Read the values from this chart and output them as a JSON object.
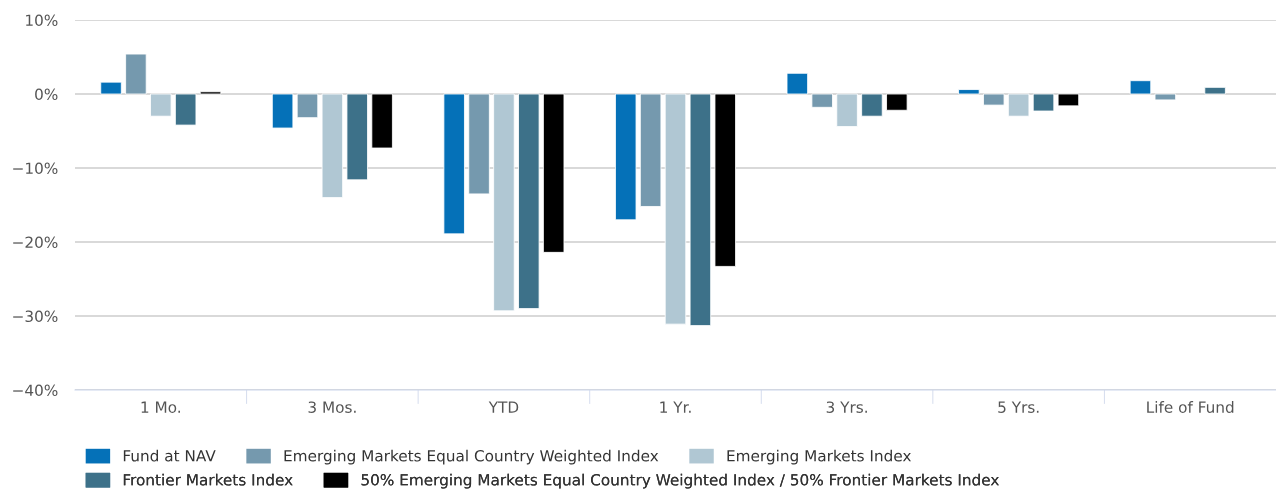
{
  "chart_data": {
    "type": "bar",
    "categories": [
      "1 Mo.",
      "3 Mos.",
      "YTD",
      "1 Yr.",
      "3 Yrs.",
      "5 Yrs.",
      "Life of Fund"
    ],
    "series": [
      {
        "name": "Fund at NAV",
        "color": "#0571b8",
        "values": [
          1.6,
          -4.6,
          -18.9,
          -17.0,
          2.8,
          0.6,
          1.8
        ]
      },
      {
        "name": "Emerging Markets Equal Country Weighted Index",
        "color": "#7599ae",
        "values": [
          5.4,
          -3.2,
          -13.5,
          -15.2,
          -1.8,
          -1.5,
          -0.8
        ]
      },
      {
        "name": "Emerging Markets Index",
        "color": "#b0c7d3",
        "values": [
          -3.0,
          -14.0,
          -29.3,
          -31.1,
          -4.4,
          -3.0,
          null
        ]
      },
      {
        "name": "Frontier Markets Index",
        "color": "#3d7189",
        "values": [
          -4.2,
          -11.6,
          -29.0,
          -31.3,
          -3.0,
          -2.3,
          0.9
        ]
      },
      {
        "name": "50% Emerging Markets Equal Country Weighted Index / 50% Frontier Markets Index",
        "color": "#000000",
        "values": [
          0.3,
          -7.3,
          -21.4,
          -23.3,
          -2.2,
          -1.6,
          null
        ]
      }
    ],
    "ylim": [
      -40,
      10
    ],
    "yticks": [
      {
        "value": -40,
        "label": "−40%"
      },
      {
        "value": -30,
        "label": "−30%"
      },
      {
        "value": -20,
        "label": "−20%"
      },
      {
        "value": -10,
        "label": "−10%"
      },
      {
        "value": 0,
        "label": "0%"
      },
      {
        "value": 10,
        "label": "10%"
      }
    ],
    "grid": "y",
    "legend": "bottom"
  }
}
